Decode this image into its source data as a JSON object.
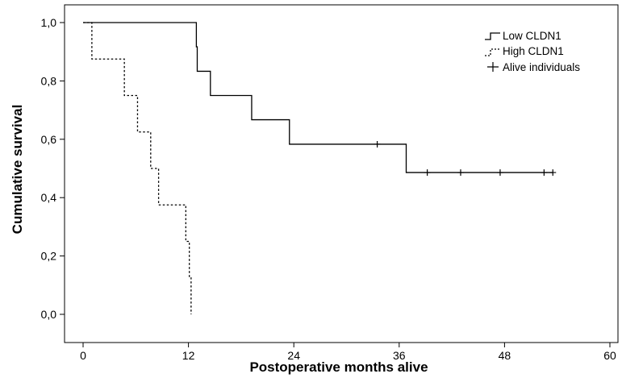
{
  "chart_data": {
    "type": "line",
    "subtype": "kaplan-meier step",
    "title": "",
    "xlabel": "Postoperative months alive",
    "ylabel": "Cumulative survival",
    "xlim": [
      0,
      60
    ],
    "ylim": [
      0,
      1
    ],
    "x_ticks": [
      0,
      12,
      24,
      36,
      48,
      60
    ],
    "x_tick_labels": [
      "0",
      "12",
      "24",
      "36",
      "48",
      "60"
    ],
    "y_ticks": [
      0,
      0.2,
      0.4,
      0.6,
      0.8,
      1.0
    ],
    "y_tick_labels": [
      "0,0",
      "0,2",
      "0,4",
      "0,6",
      "0,8",
      "1,0"
    ],
    "grid": false,
    "legend_position": "top-right",
    "legend": [
      {
        "label": "Low CLDN1",
        "symbol": "solid-step"
      },
      {
        "label": "High CLDN1",
        "symbol": "dotted-step"
      },
      {
        "label": "Alive individuals",
        "symbol": "plus"
      }
    ],
    "series": [
      {
        "name": "Low CLDN1",
        "style": "solid",
        "steps": [
          {
            "x": 0,
            "y": 1.0
          },
          {
            "x": 12.9,
            "y": 0.917
          },
          {
            "x": 13.0,
            "y": 0.833
          },
          {
            "x": 14.5,
            "y": 0.75
          },
          {
            "x": 19.2,
            "y": 0.667
          },
          {
            "x": 23.5,
            "y": 0.583
          },
          {
            "x": 36.8,
            "y": 0.486
          }
        ],
        "end_x": 53.5,
        "censored": [
          {
            "x": 33.5,
            "y": 0.583
          },
          {
            "x": 39.2,
            "y": 0.486
          },
          {
            "x": 43.0,
            "y": 0.486
          },
          {
            "x": 47.5,
            "y": 0.486
          },
          {
            "x": 52.5,
            "y": 0.486
          },
          {
            "x": 53.5,
            "y": 0.486
          }
        ]
      },
      {
        "name": "High CLDN1",
        "style": "dotted",
        "steps": [
          {
            "x": 0,
            "y": 1.0
          },
          {
            "x": 1.0,
            "y": 0.875
          },
          {
            "x": 4.7,
            "y": 0.75
          },
          {
            "x": 6.2,
            "y": 0.625
          },
          {
            "x": 7.7,
            "y": 0.5
          },
          {
            "x": 8.6,
            "y": 0.375
          },
          {
            "x": 11.7,
            "y": 0.25
          },
          {
            "x": 12.1,
            "y": 0.125
          },
          {
            "x": 12.3,
            "y": 0.0
          }
        ],
        "end_x": 12.3,
        "censored": []
      }
    ]
  }
}
